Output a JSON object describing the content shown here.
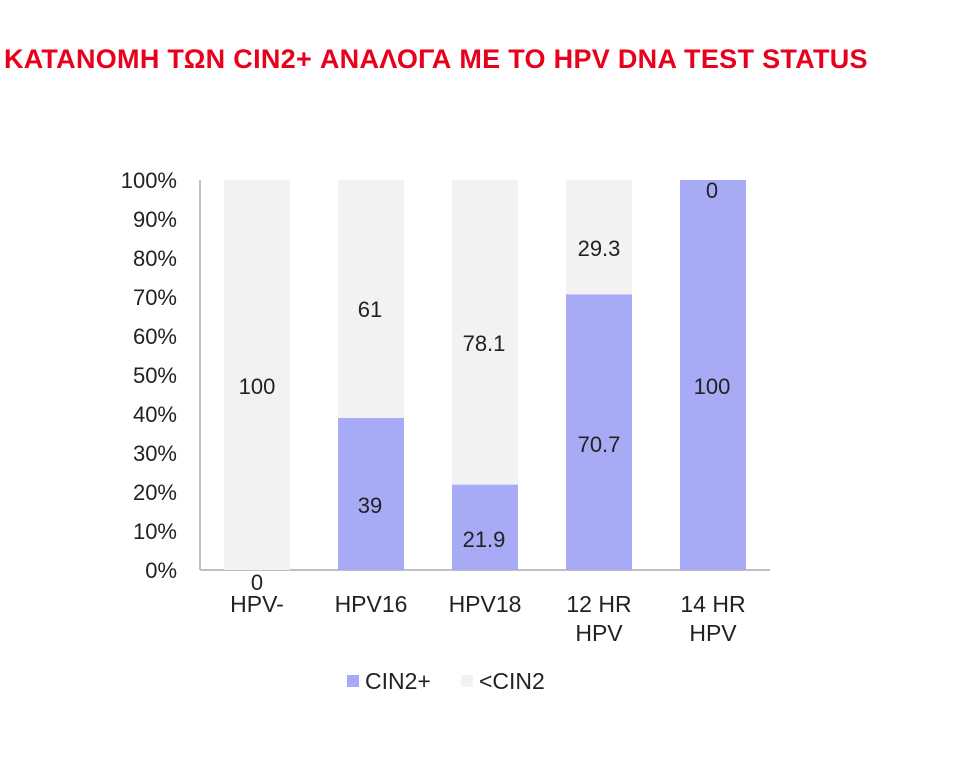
{
  "title": "ΚΑΤΑΝΟΜΗ ΤΩΝ CIN2+ ΑΝΑΛΟΓΑ ΜΕ ΤΟ HPV DNA TEST STATUS",
  "colors": {
    "title": "#e8001c",
    "cin2_plus": "#a7abf5",
    "below_cin2": "#f2f2f2",
    "axis": "#bfbfbf"
  },
  "chart_data": {
    "type": "bar",
    "stacked": true,
    "percent": true,
    "categories": [
      [
        "HPV-"
      ],
      [
        "HPV16"
      ],
      [
        "HPV18"
      ],
      [
        "12 HR",
        "HPV"
      ],
      [
        "14 HR",
        "HPV"
      ]
    ],
    "series": [
      {
        "name": "CIN2+",
        "values": [
          0,
          39,
          21.9,
          70.7,
          100
        ]
      },
      {
        "name": "<CIN2",
        "values": [
          100,
          61,
          78.1,
          29.3,
          0
        ]
      }
    ],
    "data_labels": [
      [
        "0",
        "39",
        "21.9",
        "70.7",
        "100"
      ],
      [
        "100",
        "61",
        "78.1",
        "29.3",
        "0"
      ]
    ],
    "yticks": [
      "0%",
      "10%",
      "20%",
      "30%",
      "40%",
      "50%",
      "60%",
      "70%",
      "80%",
      "90%",
      "100%"
    ],
    "ylim": [
      0,
      100
    ],
    "grid": false,
    "legend": "bottom",
    "title": "",
    "xlabel": "",
    "ylabel": ""
  }
}
